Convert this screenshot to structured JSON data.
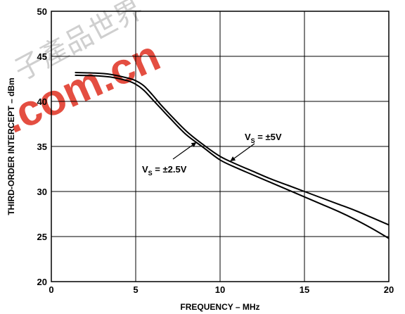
{
  "chart_data": {
    "type": "line",
    "xlabel": "FREQUENCY – MHz",
    "ylabel": "THIRD-ORDER INTERCEPT – dBm",
    "xlim": [
      0,
      20
    ],
    "ylim": [
      20,
      50
    ],
    "x_ticks": [
      "0",
      "5",
      "10",
      "15",
      "20"
    ],
    "y_ticks": [
      "20",
      "25",
      "30",
      "35",
      "40",
      "45",
      "50"
    ],
    "grid": true,
    "series": [
      {
        "name": "VS = ±5V",
        "x": [
          1.4,
          2.5,
          3.5,
          4.5,
          5.0,
          5.5,
          6.0,
          6.5,
          7.0,
          8.0,
          9.0,
          10.0,
          11.0,
          12.0,
          13.0,
          14.0,
          15.0,
          16.0,
          17.0,
          18.0,
          19.0,
          20.0
        ],
        "y": [
          43.2,
          43.15,
          43.0,
          42.6,
          42.3,
          41.7,
          40.7,
          39.6,
          38.6,
          36.7,
          35.2,
          33.9,
          33.0,
          32.2,
          31.4,
          30.7,
          30.0,
          29.3,
          28.6,
          27.9,
          27.1,
          26.3
        ]
      },
      {
        "name": "VS = ±2.5V",
        "x": [
          1.4,
          2.5,
          3.5,
          4.5,
          5.0,
          5.5,
          6.0,
          6.5,
          7.0,
          8.0,
          9.0,
          10.0,
          11.0,
          12.0,
          13.0,
          14.0,
          15.0,
          16.0,
          17.0,
          18.0,
          19.0,
          20.0
        ],
        "y": [
          42.9,
          42.85,
          42.7,
          42.3,
          41.9,
          41.2,
          40.2,
          39.2,
          38.2,
          36.3,
          34.9,
          33.5,
          32.6,
          31.8,
          31.0,
          30.2,
          29.4,
          28.6,
          27.8,
          26.9,
          25.9,
          24.8
        ]
      }
    ],
    "annotations": [
      {
        "main": "V",
        "sub": "S",
        "rest": " = ±5V",
        "target_series": 0,
        "target_x": 10.6
      },
      {
        "main": "V",
        "sub": "S",
        "rest": " = ±2.5V",
        "target_series": 1,
        "target_x": 8.6
      }
    ]
  },
  "watermark": {
    "text": ".com.cn",
    "chars": "子產品世界"
  },
  "colors": {
    "line": "#000000",
    "grid": "#000000",
    "watermark": "#e03020"
  }
}
